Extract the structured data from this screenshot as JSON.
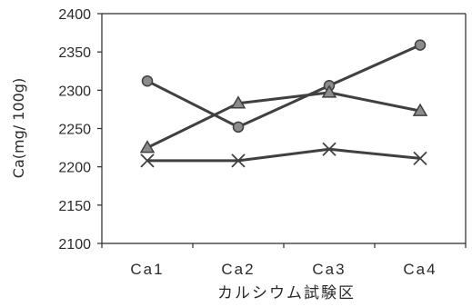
{
  "chart_data": {
    "type": "line",
    "title": "",
    "xlabel": "カルシウム試験区",
    "ylabel": "Ca(mg/ 100g)",
    "categories": [
      "Ca1",
      "Ca2",
      "Ca3",
      "Ca4"
    ],
    "category_labels": [
      "Ca1",
      "Ca2",
      "Ca3",
      "Ca4"
    ],
    "ylim": [
      2100,
      2400
    ],
    "yticks": [
      2100,
      2150,
      2200,
      2250,
      2300,
      2350,
      2400
    ],
    "ytick_labels": [
      "2100",
      "2150",
      "2200",
      "2250",
      "2300",
      "2350",
      "2400"
    ],
    "grid": false,
    "legend": "none",
    "series": [
      {
        "marker": "circle",
        "values": [
          2312,
          2252,
          2306,
          2359
        ]
      },
      {
        "marker": "triangle",
        "values": [
          2225,
          2283,
          2297,
          2273
        ]
      },
      {
        "marker": "x",
        "values": [
          2208,
          2208,
          2223,
          2211
        ]
      }
    ],
    "colors": {
      "line": "#404040",
      "marker_fill": "#8c8c8c",
      "axis": "#2b2b2b"
    }
  }
}
